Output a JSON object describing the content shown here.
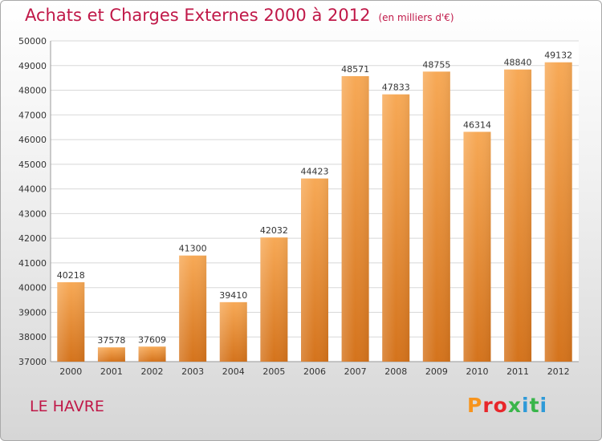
{
  "title": "Achats et Charges Externes 2000 à 2012",
  "subtitle": "(en milliers d'€)",
  "location": "LE HAVRE",
  "logo": {
    "text": "Proxiti",
    "colors": [
      "#f7941d",
      "#e8262a",
      "#e8262a",
      "#39b54a",
      "#2e9ad8",
      "#39b54a",
      "#2e9ad8"
    ]
  },
  "colors": {
    "title": "#c01848",
    "bar_light": "#f7a956",
    "bar_dark": "#d4731c"
  },
  "chart_data": {
    "type": "bar",
    "title": "Achats et Charges Externes 2000 à 2012",
    "xlabel": "",
    "ylabel": "",
    "categories": [
      "2000",
      "2001",
      "2002",
      "2003",
      "2004",
      "2005",
      "2006",
      "2007",
      "2008",
      "2009",
      "2010",
      "2011",
      "2012"
    ],
    "values": [
      40218,
      37578,
      37609,
      41300,
      39410,
      42032,
      44423,
      48571,
      47833,
      48755,
      46314,
      48840,
      49132
    ],
    "ylim": [
      37000,
      50000
    ],
    "yticks": [
      37000,
      38000,
      39000,
      40000,
      41000,
      42000,
      43000,
      44000,
      45000,
      46000,
      47000,
      48000,
      49000,
      50000
    ],
    "grid": true,
    "data_labels": true
  }
}
